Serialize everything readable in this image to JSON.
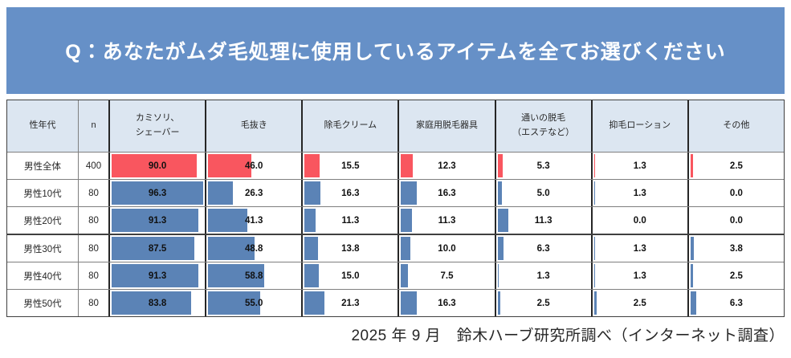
{
  "title": "Q：あなたがムダ毛処理に使用しているアイテムを全てお選びください",
  "source_note": "2025 年 9 月　鈴木ハーブ研究所調べ（インターネット調査）",
  "colors": {
    "title_bg": "#6690C7",
    "header_bg": "#DCE6F1",
    "bar_total": "#F9565F",
    "bar_age": "#5B83B6"
  },
  "table": {
    "columns": [
      "性年代",
      "n",
      "カミソリ、\nシェーバー",
      "毛抜き",
      "除毛クリーム",
      "家庭用脱毛器具",
      "通いの脱毛\n（エステなど）",
      "抑毛ローション",
      "その他"
    ],
    "rows": [
      {
        "label": "男性全体",
        "n": "400",
        "values": [
          "90.0",
          "46.0",
          "15.5",
          "12.3",
          "5.3",
          "1.3",
          "2.5"
        ]
      },
      {
        "label": "男性10代",
        "n": "80",
        "values": [
          "96.3",
          "26.3",
          "16.3",
          "16.3",
          "5.0",
          "1.3",
          "0.0"
        ]
      },
      {
        "label": "男性20代",
        "n": "80",
        "values": [
          "91.3",
          "41.3",
          "11.3",
          "11.3",
          "11.3",
          "0.0",
          "0.0"
        ]
      },
      {
        "label": "男性30代",
        "n": "80",
        "values": [
          "87.5",
          "48.8",
          "13.8",
          "10.0",
          "6.3",
          "1.3",
          "3.8"
        ]
      },
      {
        "label": "男性40代",
        "n": "80",
        "values": [
          "91.3",
          "58.8",
          "15.0",
          "7.5",
          "1.3",
          "1.3",
          "2.5"
        ]
      },
      {
        "label": "男性50代",
        "n": "80",
        "values": [
          "83.8",
          "55.0",
          "21.3",
          "16.3",
          "2.5",
          "2.5",
          "6.3"
        ]
      }
    ]
  },
  "chart_data": {
    "type": "bar",
    "orientation": "horizontal",
    "unit": "%",
    "title": "Q：あなたがムダ毛処理に使用しているアイテムを全てお選びください",
    "categories": [
      "カミソリ、シェーバー",
      "毛抜き",
      "除毛クリーム",
      "家庭用脱毛器具",
      "通いの脱毛（エステなど）",
      "抑毛ローション",
      "その他"
    ],
    "series": [
      {
        "name": "男性全体",
        "n": 400,
        "values": [
          90.0,
          46.0,
          15.5,
          12.3,
          5.3,
          1.3,
          2.5
        ]
      },
      {
        "name": "男性10代",
        "n": 80,
        "values": [
          96.3,
          26.3,
          16.3,
          16.3,
          5.0,
          1.3,
          0.0
        ]
      },
      {
        "name": "男性20代",
        "n": 80,
        "values": [
          91.3,
          41.3,
          11.3,
          11.3,
          11.3,
          0.0,
          0.0
        ]
      },
      {
        "name": "男性30代",
        "n": 80,
        "values": [
          87.5,
          48.8,
          13.8,
          10.0,
          6.3,
          1.3,
          3.8
        ]
      },
      {
        "name": "男性40代",
        "n": 80,
        "values": [
          91.3,
          58.8,
          15.0,
          7.5,
          1.3,
          1.3,
          2.5
        ]
      },
      {
        "name": "男性50代",
        "n": 80,
        "values": [
          83.8,
          55.0,
          21.3,
          16.3,
          2.5,
          2.5,
          6.3
        ]
      }
    ],
    "xlim": [
      0,
      100
    ],
    "grid": false,
    "legend": "none",
    "source": "2025 年 9 月　鈴木ハーブ研究所調べ（インターネット調査）"
  }
}
